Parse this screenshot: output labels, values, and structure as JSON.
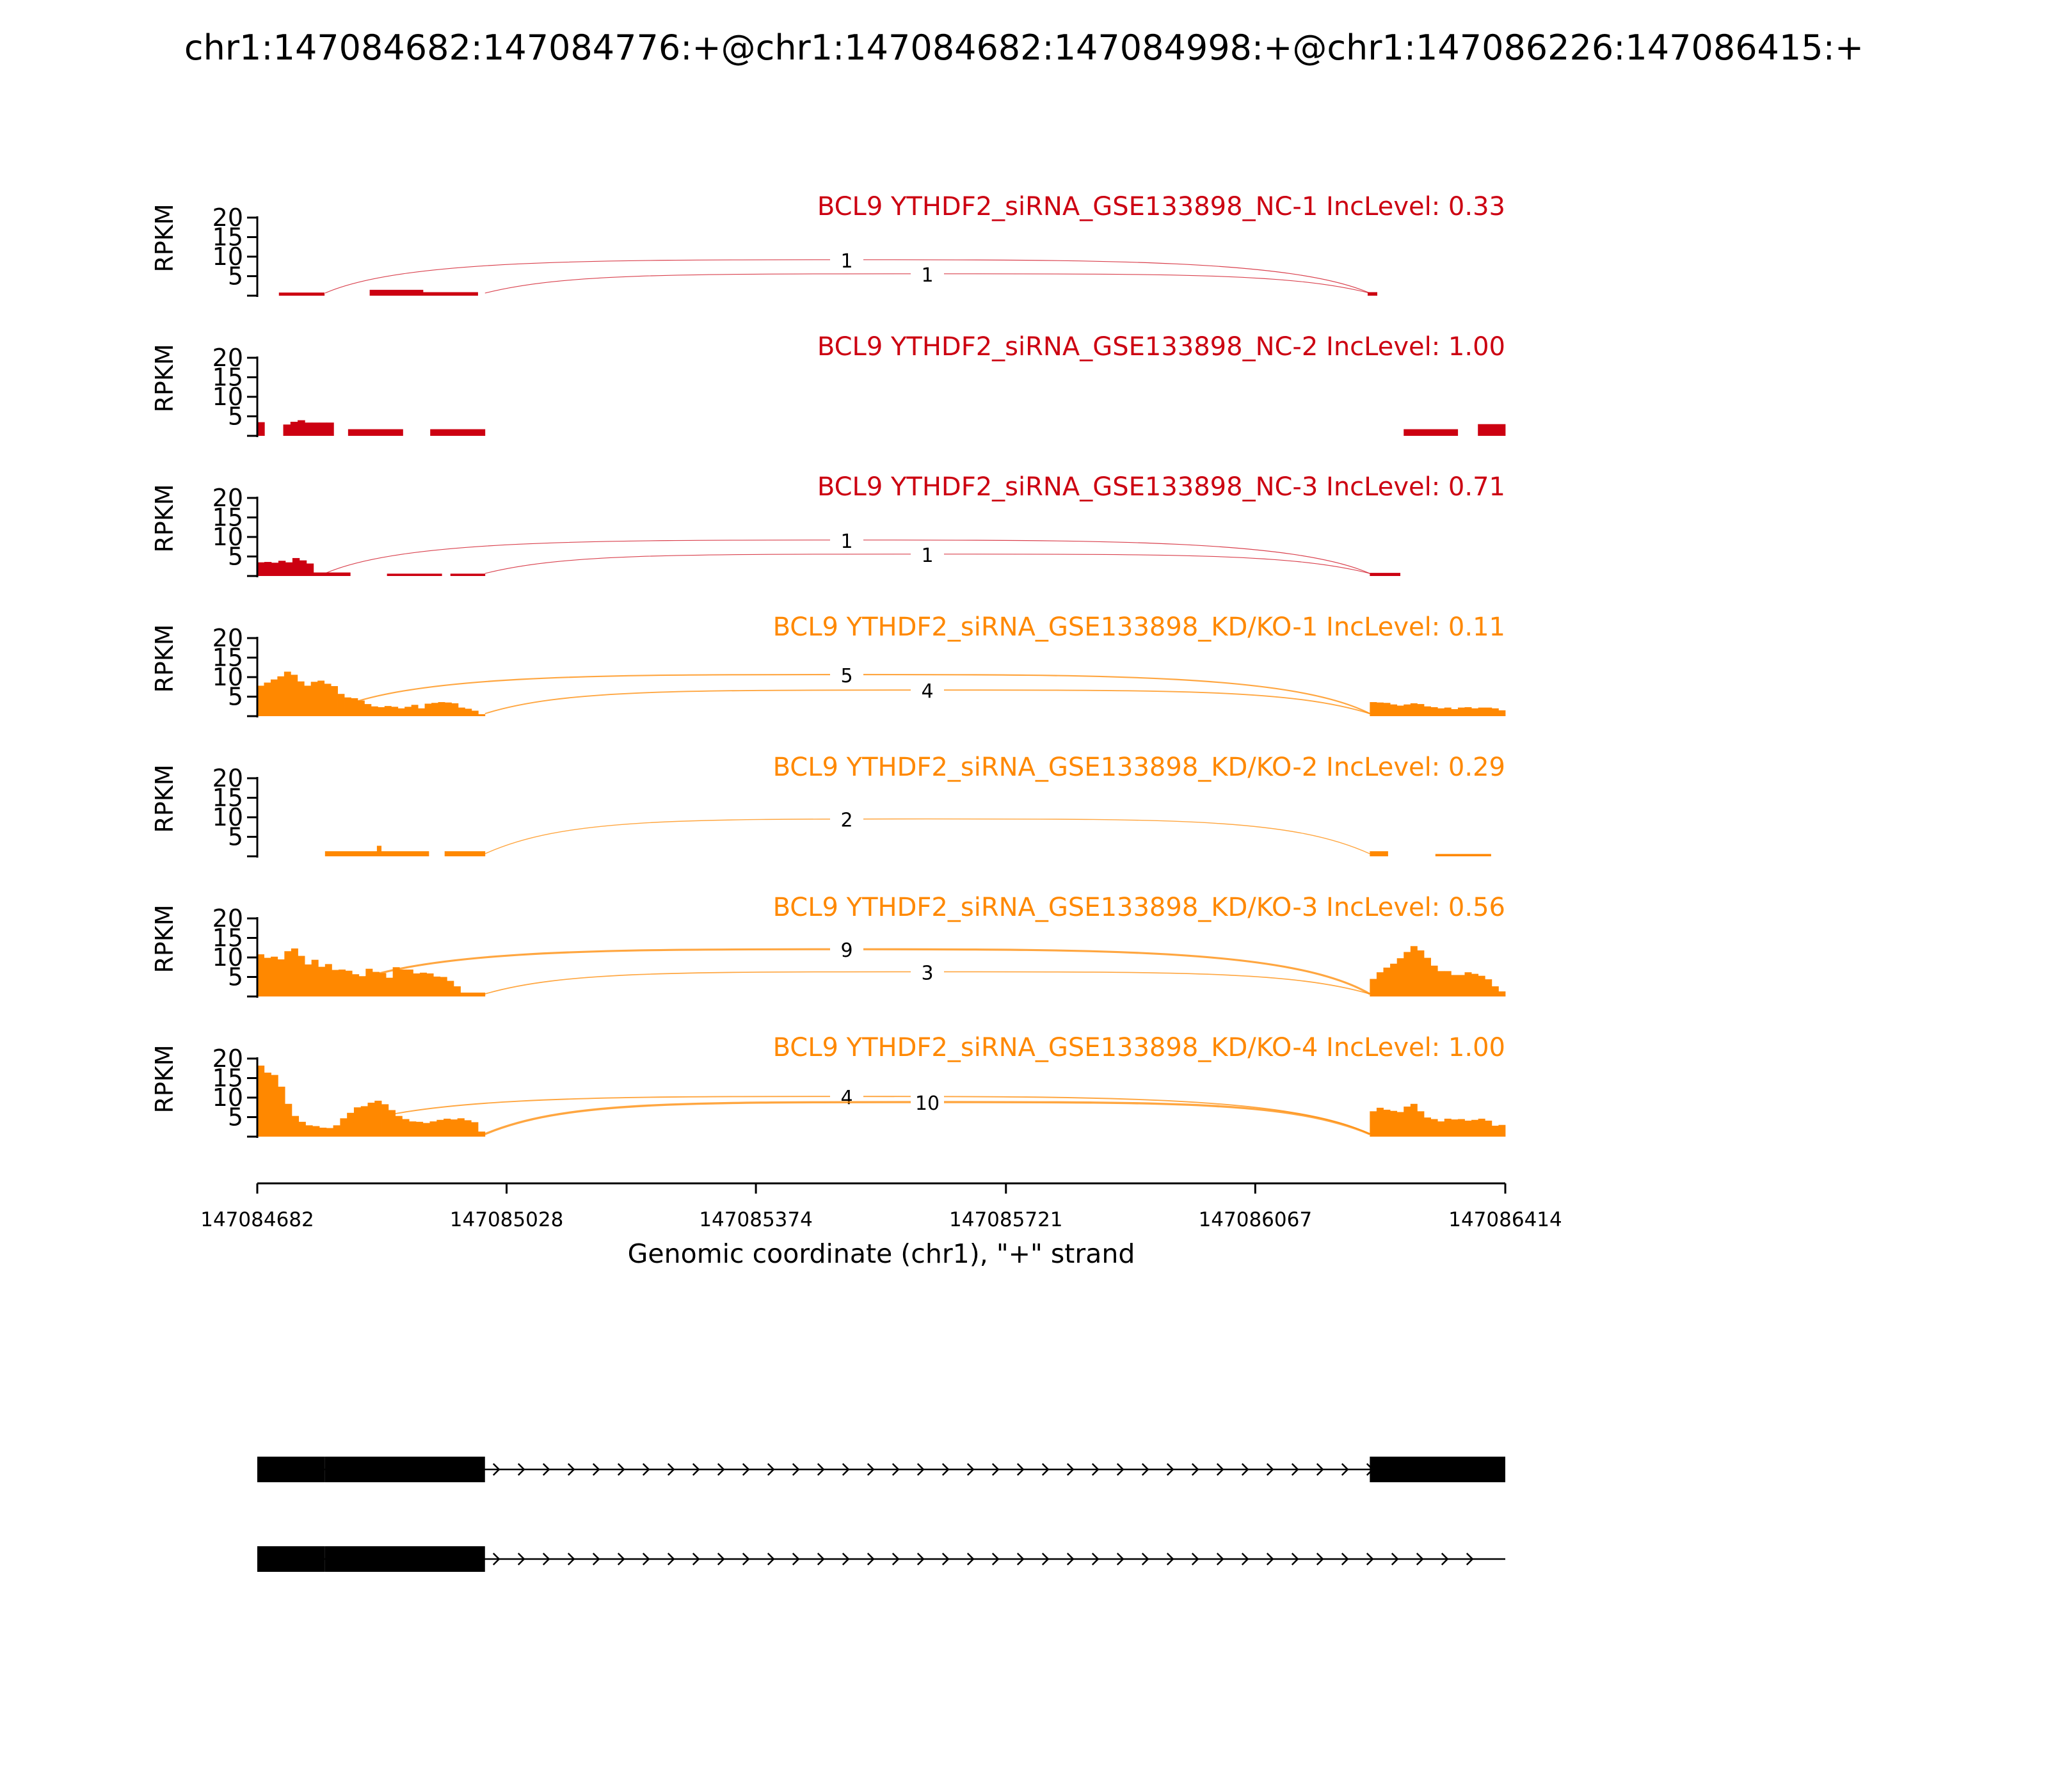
{
  "title": "chr1:147084682:147084776:+@chr1:147084682:147084998:+@chr1:147086226:147086415:+",
  "colors": {
    "nc": "#cc0011",
    "kd": "#ff8800"
  },
  "chart_data": {
    "type": "area",
    "title": "chr1:147084682:147084776:+@chr1:147084682:147084998:+@chr1:147086226:147086415:+",
    "xlabel": "Genomic coordinate (chr1), \"+\" strand",
    "ylabel": "RPKM",
    "xlim": [
      147084682,
      147086414
    ],
    "x_ticks": [
      "147084682",
      "147085028",
      "147085374",
      "147085721",
      "147086067",
      "147086414"
    ],
    "ylim": [
      0,
      20
    ],
    "y_ticks": [
      "5",
      "10",
      "15",
      "20"
    ],
    "tracks": [
      {
        "label": "BCL9 YTHDF2_siRNA_GSE133898_NC-1 IncLevel: 0.33",
        "group": "nc",
        "coverage": [
          {
            "start": 147084712,
            "end": 147084775,
            "values": [
              0.8
            ]
          },
          {
            "start": 147084838,
            "end": 147084912,
            "values": [
              1.5
            ]
          },
          {
            "start": 147084912,
            "end": 147084988,
            "values": [
              0.9
            ]
          },
          {
            "start": 147086223,
            "end": 147086236,
            "values": [
              0.9
            ]
          }
        ],
        "junctions": [
          {
            "start": 147084776,
            "end": 147086226,
            "count": "1"
          },
          {
            "start": 147084998,
            "end": 147086226,
            "count": "1"
          }
        ]
      },
      {
        "label": "BCL9 YTHDF2_siRNA_GSE133898_NC-2 IncLevel: 1.00",
        "group": "nc",
        "coverage": [
          {
            "start": 147084682,
            "end": 147084692,
            "values": [
              3.5
            ]
          },
          {
            "start": 147084718,
            "end": 147084788,
            "values": [
              2.9,
              3.6,
              4.0,
              3.4,
              3.4,
              3.4,
              3.4
            ]
          },
          {
            "start": 147084808,
            "end": 147084884,
            "values": [
              1.7
            ]
          },
          {
            "start": 147084922,
            "end": 147084998,
            "values": [
              1.7
            ]
          },
          {
            "start": 147086273,
            "end": 147086348,
            "values": [
              1.7
            ]
          },
          {
            "start": 147086376,
            "end": 147086414,
            "values": [
              3.0
            ]
          }
        ],
        "junctions": []
      },
      {
        "label": "BCL9 YTHDF2_siRNA_GSE133898_NC-3 IncLevel: 0.71",
        "group": "nc",
        "coverage": [
          {
            "start": 147084682,
            "end": 147084760,
            "values": [
              3.5,
              3.6,
              3.4,
              3.9,
              3.5,
              4.6,
              4.0,
              3.2
            ]
          },
          {
            "start": 147084760,
            "end": 147084811,
            "values": [
              0.9
            ]
          },
          {
            "start": 147084862,
            "end": 147084938,
            "values": [
              0.6
            ]
          },
          {
            "start": 147084950,
            "end": 147084998,
            "values": [
              0.6
            ]
          },
          {
            "start": 147086226,
            "end": 147086268,
            "values": [
              0.8
            ]
          }
        ],
        "junctions": [
          {
            "start": 147084776,
            "end": 147086226,
            "count": "1"
          },
          {
            "start": 147084998,
            "end": 147086226,
            "count": "1"
          }
        ]
      },
      {
        "label": "BCL9 YTHDF2_siRNA_GSE133898_KD/KO-1 IncLevel: 0.11",
        "group": "kd",
        "coverage": [
          {
            "start": 147084682,
            "end": 147084998,
            "values": [
              7.8,
              8.6,
              9.4,
              10.2,
              11.4,
              10.6,
              8.9,
              7.8,
              8.8,
              9.1,
              8.3,
              7.7,
              5.7,
              4.8,
              4.6,
              4.0,
              3.1,
              2.5,
              2.3,
              2.6,
              2.4,
              2.0,
              2.4,
              2.9,
              2.0,
              3.2,
              3.4,
              3.6,
              3.5,
              3.3,
              2.2,
              1.9,
              1.4,
              0.5
            ]
          },
          {
            "start": 147086226,
            "end": 147086414,
            "values": [
              3.6,
              3.5,
              3.4,
              3.0,
              2.7,
              3.0,
              3.3,
              3.1,
              2.5,
              2.3,
              2.0,
              2.2,
              1.8,
              2.2,
              2.3,
              2.0,
              2.2,
              2.2,
              2.0,
              1.5
            ]
          }
        ],
        "junctions": [
          {
            "start": 147084776,
            "end": 147086226,
            "count": "5"
          },
          {
            "start": 147084998,
            "end": 147086226,
            "count": "4"
          }
        ]
      },
      {
        "label": "BCL9 YTHDF2_siRNA_GSE133898_KD/KO-2 IncLevel: 0.29",
        "group": "kd",
        "coverage": [
          {
            "start": 147084776,
            "end": 147084848,
            "values": [
              1.3
            ]
          },
          {
            "start": 147084848,
            "end": 147084854,
            "values": [
              2.7
            ]
          },
          {
            "start": 147084854,
            "end": 147084920,
            "values": [
              1.3
            ]
          },
          {
            "start": 147084942,
            "end": 147084998,
            "values": [
              1.3
            ]
          },
          {
            "start": 147086226,
            "end": 147086251,
            "values": [
              1.3
            ]
          },
          {
            "start": 147086317,
            "end": 147086394,
            "values": [
              0.6
            ]
          }
        ],
        "junctions": [
          {
            "start": 147084998,
            "end": 147086226,
            "count": "2"
          }
        ]
      },
      {
        "label": "BCL9 YTHDF2_siRNA_GSE133898_KD/KO-3 IncLevel: 0.56",
        "group": "kd",
        "coverage": [
          {
            "start": 147084682,
            "end": 147084964,
            "values": [
              10.8,
              9.9,
              10.2,
              9.5,
              11.6,
              12.3,
              10.4,
              8.2,
              9.4,
              7.6,
              8.3,
              6.8,
              6.9,
              6.6,
              5.7,
              5.2,
              7.1,
              6.3,
              6.0,
              4.8,
              7.5,
              6.9,
              6.9,
              5.9,
              6.1,
              5.9,
              5.1,
              5.0,
              4.0,
              2.6
            ]
          },
          {
            "start": 147084964,
            "end": 147084998,
            "values": [
              1.0
            ]
          },
          {
            "start": 147086226,
            "end": 147086414,
            "values": [
              4.5,
              6.2,
              7.4,
              8.4,
              9.8,
              11.4,
              12.9,
              11.8,
              9.9,
              7.9,
              6.5,
              6.5,
              5.5,
              5.5,
              6.2,
              5.8,
              5.3,
              4.4,
              2.6,
              1.3
            ]
          }
        ],
        "junctions": [
          {
            "start": 147084776,
            "end": 147086226,
            "count": "9"
          },
          {
            "start": 147084998,
            "end": 147086226,
            "count": "3"
          }
        ]
      },
      {
        "label": "BCL9 YTHDF2_siRNA_GSE133898_KD/KO-4 IncLevel: 1.00",
        "group": "kd",
        "coverage": [
          {
            "start": 147084682,
            "end": 147084998,
            "values": [
              18.2,
              16.4,
              15.8,
              12.8,
              8.4,
              5.3,
              3.8,
              2.9,
              2.7,
              2.3,
              2.2,
              2.9,
              4.7,
              6.1,
              7.5,
              7.8,
              8.7,
              9.2,
              8.3,
              6.8,
              5.3,
              4.5,
              3.9,
              3.8,
              3.5,
              3.9,
              4.3,
              4.6,
              4.4,
              4.7,
              4.2,
              3.7,
              1.3
            ]
          },
          {
            "start": 147086226,
            "end": 147086414,
            "values": [
              6.5,
              7.4,
              6.9,
              6.6,
              6.3,
              7.7,
              8.4,
              6.5,
              4.9,
              4.5,
              3.9,
              4.6,
              4.4,
              4.5,
              4.1,
              4.3,
              4.6,
              4.1,
              2.8,
              3.0
            ]
          }
        ],
        "junctions": [
          {
            "start": 147084776,
            "end": 147086226,
            "count": "4"
          },
          {
            "start": 147084998,
            "end": 147086226,
            "count": "10"
          }
        ]
      }
    ],
    "gene_models": [
      {
        "exons": [
          [
            147084682,
            147084776
          ],
          [
            147084776,
            147084998
          ],
          [
            147086226,
            147086415
          ]
        ]
      },
      {
        "exons": [
          [
            147084682,
            147084776
          ],
          [
            147084776,
            147084998
          ]
        ]
      }
    ]
  }
}
